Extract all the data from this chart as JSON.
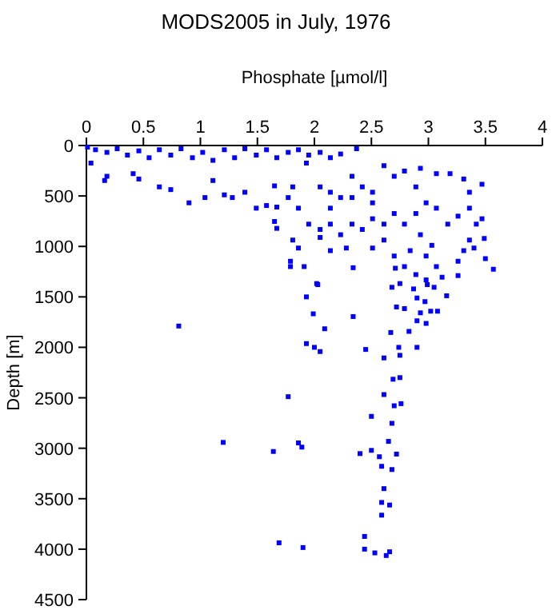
{
  "chart_data": {
    "type": "scatter",
    "title": "MODS2005 in July, 1976",
    "xlabel": "Phosphate [µmol/l]",
    "ylabel": "Depth [m]",
    "xlim": [
      0,
      4
    ],
    "xticks": [
      0,
      0.5,
      1,
      1.5,
      2,
      2.5,
      3,
      3.5,
      4
    ],
    "ylim": [
      4500,
      0
    ],
    "yticks": [
      0,
      500,
      1000,
      1500,
      2000,
      2500,
      3000,
      3500,
      4000,
      4500
    ],
    "grid": false,
    "marker": "square",
    "series": [
      {
        "color": "#0000ff",
        "x": [
          0.81,
          1.2,
          1.64,
          1.77,
          1.86,
          1.89,
          1.69,
          1.9,
          1.93,
          2.03,
          1.99,
          2.09,
          1.93,
          2.0,
          2.05,
          2.34,
          2.45,
          2.61,
          2.74,
          2.75,
          2.69,
          2.75,
          2.61,
          2.7,
          2.76,
          2.5,
          2.68,
          2.65,
          2.5,
          2.4,
          2.57,
          2.72,
          2.59,
          2.68,
          2.61,
          2.59,
          2.66,
          2.59,
          2.44,
          2.44,
          2.53,
          2.63,
          2.66,
          2.67,
          2.83,
          2.9,
          2.72,
          2.79,
          2.9,
          2.97,
          2.9,
          2.98,
          3.02,
          2.93,
          3.16,
          3.08,
          2.68,
          2.75,
          2.87,
          2.99,
          3.05,
          3.26,
          0.01,
          0.08,
          0.18,
          0.27,
          0.36,
          0.46,
          0.55,
          0.64,
          0.74,
          0.83,
          0.93,
          1.02,
          1.11,
          1.21,
          1.3,
          1.39,
          1.49,
          1.58,
          1.67,
          1.77,
          1.86,
          1.95,
          2.05,
          2.14,
          2.23,
          2.37,
          0.04,
          0.18,
          0.16,
          0.41,
          0.46,
          0.64,
          0.74,
          0.9,
          1.04,
          1.11,
          1.21,
          1.28,
          1.39,
          1.49,
          1.58,
          1.65,
          1.67,
          1.77,
          1.81,
          1.86,
          1.93,
          2.05,
          2.14,
          2.23,
          2.33,
          2.42,
          2.51,
          2.61,
          2.7,
          2.79,
          2.89,
          2.93,
          3.07,
          3.19,
          3.31,
          3.36,
          3.47,
          3.36,
          3.42,
          3.47,
          3.49,
          3.26,
          3.17,
          3.07,
          2.98,
          2.89,
          2.79,
          2.7,
          2.61,
          2.51,
          2.42,
          2.33,
          2.23,
          2.14,
          2.05,
          1.95,
          1.81,
          1.86,
          1.65,
          1.67,
          2.93,
          3.03,
          2.98,
          3.07,
          3.12,
          3.26,
          3.31,
          3.36,
          3.4,
          2.84,
          2.79,
          2.7,
          2.61,
          2.51,
          2.28,
          2.14,
          2.05,
          1.79,
          1.79,
          1.91,
          2.02,
          2.34,
          2.71,
          3.57,
          3.5,
          2.98,
          2.89,
          2.33,
          2.51,
          2.14
        ],
        "values": [
          1789,
          2942,
          3032,
          2489,
          2947,
          2989,
          3937,
          3984,
          1500,
          1379,
          1668,
          1816,
          1963,
          2000,
          2042,
          1695,
          2021,
          2105,
          2000,
          2079,
          2316,
          2300,
          2468,
          2579,
          2558,
          2684,
          2753,
          2932,
          3021,
          3053,
          3084,
          3058,
          3179,
          3211,
          3400,
          3537,
          3563,
          3663,
          3874,
          4000,
          4037,
          4063,
          4026,
          1853,
          1842,
          2000,
          1600,
          1616,
          1511,
          1547,
          1737,
          1763,
          1642,
          1658,
          1489,
          1642,
          1405,
          1368,
          1421,
          1379,
          1405,
          1289,
          16,
          42,
          68,
          32,
          95,
          53,
          121,
          42,
          95,
          32,
          121,
          68,
          147,
          42,
          121,
          32,
          95,
          42,
          121,
          68,
          42,
          95,
          68,
          121,
          84,
          32,
          174,
          305,
          347,
          279,
          332,
          410,
          437,
          568,
          516,
          347,
          489,
          516,
          463,
          621,
          595,
          400,
          610,
          516,
          410,
          621,
          174,
          410,
          463,
          516,
          305,
          410,
          568,
          200,
          305,
          253,
          410,
          226,
          279,
          279,
          332,
          463,
          384,
          621,
          779,
          726,
          921,
          700,
          779,
          621,
          568,
          674,
          779,
          674,
          779,
          726,
          832,
          779,
          884,
          779,
          832,
          779,
          937,
          1016,
          753,
          821,
          884,
          989,
          1095,
          1200,
          1305,
          1147,
          1042,
          937,
          1016,
          1042,
          1200,
          1095,
          937,
          1016,
          1016,
          1042,
          911,
          1147,
          1200,
          1200,
          1368,
          1211,
          1216,
          1226,
          1121,
          1332,
          1279,
          516,
          463,
          621
        ]
      }
    ]
  }
}
